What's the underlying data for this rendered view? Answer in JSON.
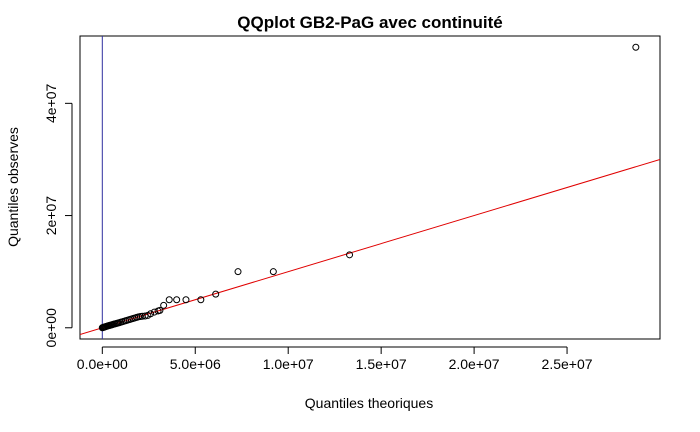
{
  "chart_data": {
    "type": "scatter",
    "title": "QQplot GB2-PaG avec continuité",
    "xlabel": "Quantiles theoriques",
    "ylabel": "Quantiles observes",
    "xlim": [
      -1200000,
      30000000
    ],
    "ylim": [
      -2000000,
      52000000
    ],
    "x_ticks": [
      0,
      5000000,
      10000000,
      15000000,
      20000000,
      25000000
    ],
    "x_tick_labels": [
      "0.0e+00",
      "5.0e+06",
      "1.0e+07",
      "1.5e+07",
      "2.0e+07",
      "2.5e+07"
    ],
    "y_ticks": [
      0,
      20000000,
      40000000
    ],
    "y_tick_labels": [
      "0e+00",
      "2e+07",
      "4e+07"
    ],
    "grid": false,
    "reference_line": {
      "type": "line",
      "intercept": 0,
      "slope": 1.0,
      "color": "#e00000"
    },
    "vertical_line": {
      "x": 0,
      "color": "#3030a0"
    },
    "points": [
      {
        "x": 0,
        "y": 0
      },
      {
        "x": 20000,
        "y": 30000
      },
      {
        "x": 50000,
        "y": 60000
      },
      {
        "x": 80000,
        "y": 90000
      },
      {
        "x": 120000,
        "y": 130000
      },
      {
        "x": 160000,
        "y": 180000
      },
      {
        "x": 200000,
        "y": 230000
      },
      {
        "x": 250000,
        "y": 280000
      },
      {
        "x": 300000,
        "y": 330000
      },
      {
        "x": 350000,
        "y": 380000
      },
      {
        "x": 400000,
        "y": 420000
      },
      {
        "x": 450000,
        "y": 470000
      },
      {
        "x": 500000,
        "y": 520000
      },
      {
        "x": 560000,
        "y": 580000
      },
      {
        "x": 620000,
        "y": 640000
      },
      {
        "x": 680000,
        "y": 700000
      },
      {
        "x": 750000,
        "y": 760000
      },
      {
        "x": 820000,
        "y": 830000
      },
      {
        "x": 900000,
        "y": 900000
      },
      {
        "x": 980000,
        "y": 980000
      },
      {
        "x": 1060000,
        "y": 1060000
      },
      {
        "x": 1150000,
        "y": 1150000
      },
      {
        "x": 1250000,
        "y": 1250000
      },
      {
        "x": 1350000,
        "y": 1350000
      },
      {
        "x": 1450000,
        "y": 1450000
      },
      {
        "x": 1550000,
        "y": 1550000
      },
      {
        "x": 1650000,
        "y": 1650000
      },
      {
        "x": 1750000,
        "y": 1750000
      },
      {
        "x": 1850000,
        "y": 1850000
      },
      {
        "x": 1950000,
        "y": 1950000
      },
      {
        "x": 2050000,
        "y": 2000000
      },
      {
        "x": 2150000,
        "y": 2050000
      },
      {
        "x": 2300000,
        "y": 2100000
      },
      {
        "x": 2450000,
        "y": 2200000
      },
      {
        "x": 2600000,
        "y": 2500000
      },
      {
        "x": 2800000,
        "y": 2800000
      },
      {
        "x": 3000000,
        "y": 3000000
      },
      {
        "x": 3100000,
        "y": 3100000
      },
      {
        "x": 3300000,
        "y": 4000000
      },
      {
        "x": 3600000,
        "y": 5000000
      },
      {
        "x": 4000000,
        "y": 5000000
      },
      {
        "x": 4500000,
        "y": 5000000
      },
      {
        "x": 5300000,
        "y": 5000000
      },
      {
        "x": 6100000,
        "y": 6000000
      },
      {
        "x": 7300000,
        "y": 10000000
      },
      {
        "x": 9200000,
        "y": 10000000
      },
      {
        "x": 13300000,
        "y": 13000000
      },
      {
        "x": 28700000,
        "y": 50000000
      }
    ]
  }
}
